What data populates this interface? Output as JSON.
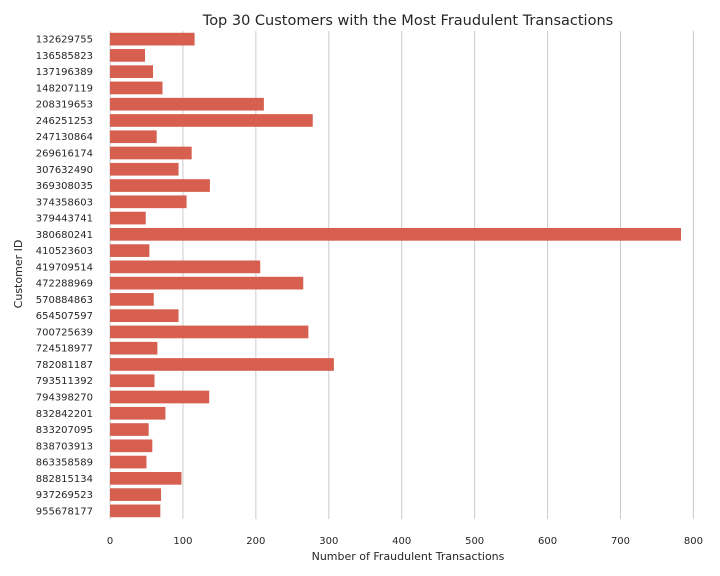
{
  "chart_data": {
    "type": "bar",
    "orientation": "horizontal",
    "title": "Top 30 Customers with the Most Fraudulent Transactions",
    "xlabel": "Number of Fraudulent Transactions",
    "ylabel": "Customer ID",
    "xlim": [
      0,
      820
    ],
    "xticks": [
      0,
      100,
      200,
      300,
      400,
      500,
      600,
      700,
      800
    ],
    "grid": "vertical",
    "bar_color": "#d65f50",
    "categories": [
      "132629755",
      "136585823",
      "137196389",
      "148207119",
      "208319653",
      "246251253",
      "247130864",
      "269616174",
      "307632490",
      "369308035",
      "374358603",
      "379443741",
      "380680241",
      "410523603",
      "419709514",
      "472288969",
      "570884863",
      "654507597",
      "700725639",
      "724518977",
      "782081187",
      "793511392",
      "794398270",
      "832842201",
      "833207095",
      "838703913",
      "863358589",
      "882815134",
      "937269523",
      "955678177"
    ],
    "values": [
      116,
      48,
      59,
      72,
      211,
      278,
      64,
      112,
      94,
      137,
      105,
      49,
      783,
      54,
      206,
      265,
      60,
      94,
      272,
      65,
      307,
      61,
      136,
      76,
      53,
      58,
      50,
      98,
      70,
      69
    ]
  }
}
